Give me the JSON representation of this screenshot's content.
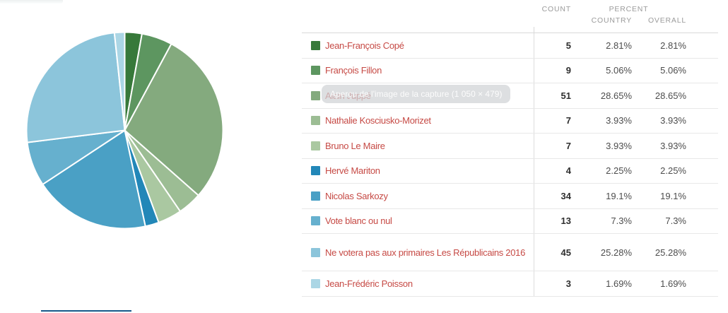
{
  "table": {
    "headers": {
      "count": "COUNT",
      "percent": "PERCENT",
      "country": "COUNTRY",
      "overall": "OVERALL"
    },
    "rows": [
      {
        "label": "Jean-François Copé",
        "color": "#37793a",
        "count": "5",
        "country": "2.81%",
        "overall": "2.81%"
      },
      {
        "label": "François Fillon",
        "color": "#5d9660",
        "count": "9",
        "country": "5.06%",
        "overall": "5.06%"
      },
      {
        "label": "Alain Juppé",
        "color": "#84aa7e",
        "count": "51",
        "country": "28.65%",
        "overall": "28.65%"
      },
      {
        "label": "Nathalie Kosciusko-Morizet",
        "color": "#9cbd94",
        "count": "7",
        "country": "3.93%",
        "overall": "3.93%"
      },
      {
        "label": "Bruno Le Maire",
        "color": "#aac8a1",
        "count": "7",
        "country": "3.93%",
        "overall": "3.93%"
      },
      {
        "label": "Hervé Mariton",
        "color": "#2287b8",
        "count": "4",
        "country": "2.25%",
        "overall": "2.25%"
      },
      {
        "label": "Nicolas Sarkozy",
        "color": "#4aa0c5",
        "count": "34",
        "country": "19.1%",
        "overall": "19.1%"
      },
      {
        "label": "Vote blanc ou nul",
        "color": "#66b0ce",
        "count": "13",
        "country": "7.3%",
        "overall": "7.3%"
      },
      {
        "label": "Ne votera pas aux primaires Les Républicains 2016",
        "color": "#8cc5db",
        "count": "45",
        "country": "25.28%",
        "overall": "25.28%"
      },
      {
        "label": "Jean-Frédéric Poisson",
        "color": "#abd6e5",
        "count": "3",
        "country": "1.69%",
        "overall": "1.69%"
      }
    ]
  },
  "tooltip": {
    "text": "Aperçu de l'image de la capture (1 050 × 479)"
  },
  "artifacts": {
    "bottom_button_border_color": "#15588a",
    "top_fragment_color": "#edf1f1"
  },
  "chart_data": {
    "type": "pie",
    "categories": [
      "Jean-François Copé",
      "François Fillon",
      "Alain Juppé",
      "Nathalie Kosciusko-Morizet",
      "Bruno Le Maire",
      "Hervé Mariton",
      "Nicolas Sarkozy",
      "Vote blanc ou nul",
      "Ne votera pas aux primaires Les Républicains 2016",
      "Jean-Frédéric Poisson"
    ],
    "values": [
      5,
      9,
      51,
      7,
      7,
      4,
      34,
      13,
      45,
      3
    ],
    "percent_labels": [
      "2.81%",
      "5.06%",
      "28.65%",
      "3.93%",
      "3.93%",
      "2.25%",
      "19.1%",
      "7.3%",
      "25.28%",
      "1.69%"
    ],
    "colors": [
      "#37793a",
      "#5d9660",
      "#84aa7e",
      "#9cbd94",
      "#aac8a1",
      "#2287b8",
      "#4aa0c5",
      "#66b0ce",
      "#8cc5db",
      "#abd6e5"
    ],
    "title": "",
    "start_angle_deg": 0,
    "direction": "clockwise",
    "slice_border_color": "#ffffff",
    "legend_position": "table-right"
  }
}
